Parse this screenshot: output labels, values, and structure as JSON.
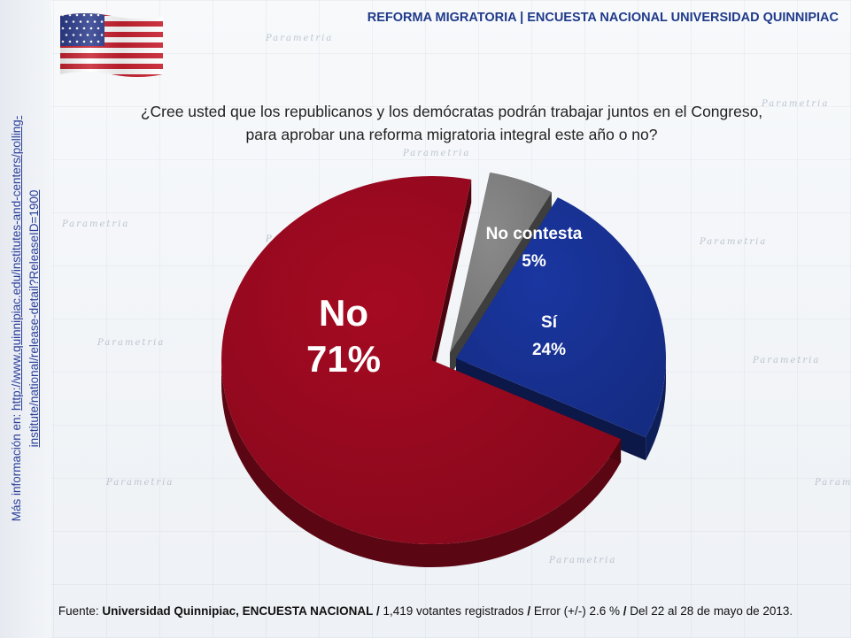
{
  "header": {
    "title": "REFORMA MIGRATORIA | ENCUESTA NACIONAL UNIVERSIDAD QUINNIPIAC"
  },
  "question": {
    "line1": "¿Cree usted que los republicanos y los demócratas podrán trabajar juntos en el Congreso,",
    "line2": "para aprobar una reforma migratoria integral este año o no?"
  },
  "side_link": {
    "prefix": "Más información en:",
    "line1": "http://www.quinnipiac.edu/institutes-and-centers/polling-",
    "line2": "institute/national/release-detail?ReleaseID=1900"
  },
  "watermark": {
    "text": "Parametria"
  },
  "flag": {
    "icon": "us-flag-icon"
  },
  "colors": {
    "no": "#a50a22",
    "si": "#1a36a0",
    "no_contesta": "#8a8a8a",
    "title": "#1f3a8a"
  },
  "chart_data": {
    "type": "pie",
    "slices": [
      {
        "label": "No",
        "value": 71,
        "pct_text": "71%",
        "color": "#a50a22"
      },
      {
        "label": "Sí",
        "value": 24,
        "pct_text": "24%",
        "color": "#1a36a0"
      },
      {
        "label": "No contesta",
        "value": 5,
        "pct_text": "5%",
        "color": "#8a8a8a"
      }
    ]
  },
  "footer": {
    "prefix": "Fuente: ",
    "source": "Universidad Quinnipiac, ENCUESTA NACIONAL",
    "sep1": " / ",
    "sample": "1,419 votantes registrados",
    "sep2": " / ",
    "error": "Error (+/-) 2.6 %",
    "sep3": "  / ",
    "dates": "Del 22 al 28 de mayo de 2013."
  }
}
